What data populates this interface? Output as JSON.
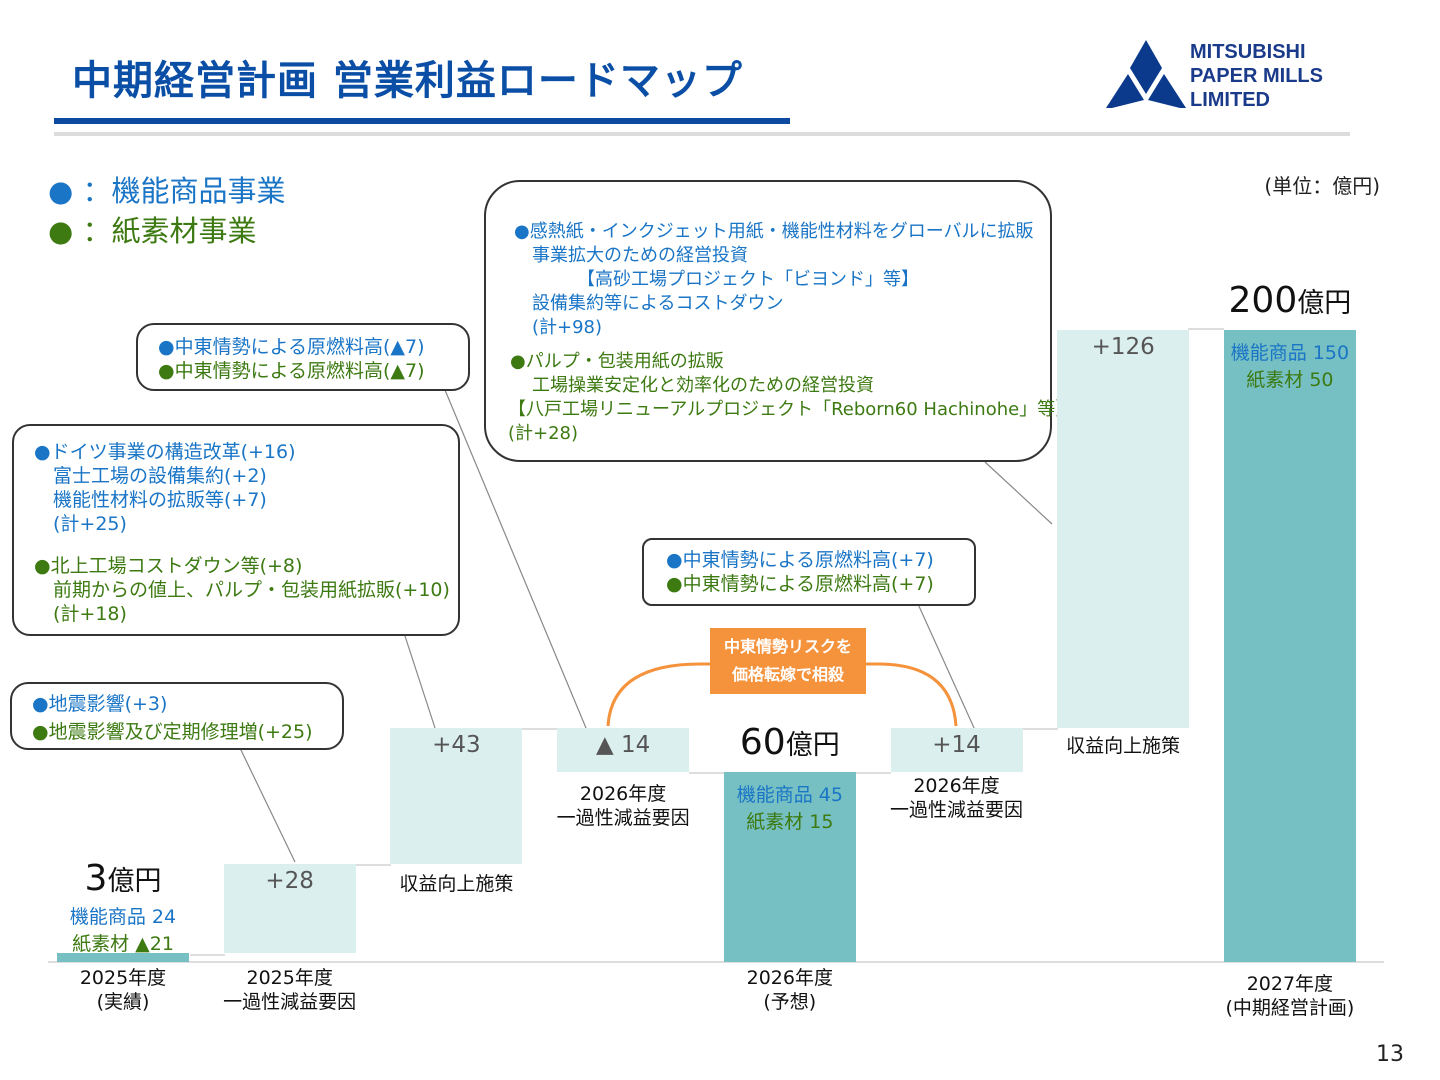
{
  "header": {
    "title": "中期経営計画 営業利益ロードマップ",
    "logo_lines": [
      "MITSUBISHI",
      "PAPER MILLS",
      "LIMITED"
    ]
  },
  "legend": {
    "items": [
      {
        "marker": "●",
        "label": "：機能商品事業",
        "color": "#1a75c6"
      },
      {
        "marker": "●",
        "label": "：紙素材事業",
        "color": "#3d7a12"
      }
    ]
  },
  "unit_label": "(単位：億円)",
  "callouts": {
    "c1": {
      "lines": [
        {
          "text": "●地震影響(+3)",
          "color": "blue"
        },
        {
          "text": "●地震影響及び定期修理増(+25)",
          "color": "green"
        }
      ]
    },
    "c2": {
      "lines": [
        {
          "text": "●ドイツ事業の構造改革(+16)",
          "color": "blue"
        },
        {
          "text": "　富士工場の設備集約(+2)",
          "color": "blue"
        },
        {
          "text": "　機能性材料の拡販等(+7)",
          "color": "blue"
        },
        {
          "text": "　(計+25)",
          "color": "blue"
        },
        {
          "text": "●北上工場コストダウン等(+8)",
          "color": "green"
        },
        {
          "text": "　前期からの値上、パルプ・包装用紙拡販(+10)",
          "color": "green"
        },
        {
          "text": "　(計+18)",
          "color": "green"
        }
      ]
    },
    "c3": {
      "lines": [
        {
          "text": "●中東情勢による原燃料高(▲7)",
          "color": "blue"
        },
        {
          "text": "●中東情勢による原燃料高(▲7)",
          "color": "green"
        }
      ]
    },
    "c4": {
      "lines": [
        {
          "text": "●感熱紙・インクジェット用紙・機能性材料をグローバルに拡販",
          "color": "blue"
        },
        {
          "text": "　事業拡大のための経営投資",
          "color": "blue"
        },
        {
          "text": "　　　　【高砂工場プロジェクト「ビヨンド」等】",
          "color": "blue"
        },
        {
          "text": "　設備集約等によるコストダウン",
          "color": "blue"
        },
        {
          "text": "　(計+98)",
          "color": "blue"
        },
        {
          "text": "●パルプ・包装用紙の拡販",
          "color": "green"
        },
        {
          "text": "　工場操業安定化と効率化のための経営投資",
          "color": "green"
        },
        {
          "text": "【八戸工場リニューアルプロジェクト「Reborn60 Hachinohe」等】",
          "color": "green"
        },
        {
          "text": "(計+28)",
          "color": "green"
        }
      ]
    },
    "c5": {
      "lines": [
        {
          "text": "●中東情勢による原燃料高(+7)",
          "color": "blue"
        },
        {
          "text": "●中東情勢による原燃料高(+7)",
          "color": "green"
        }
      ]
    }
  },
  "risk_box": {
    "line1": "中東情勢リスクを",
    "line2": "価格転嫁で相殺"
  },
  "chart_data": {
    "type": "bar",
    "subtype": "waterfall",
    "unit": "億円",
    "categories": [
      "2025年度\n(実績)",
      "2025年度\n一過性減益要因",
      "収益向上施策",
      "2026年度\n一過性減益要因",
      "2026年度\n(予想)",
      "2026年度\n一過性減益要因",
      "収益向上施策",
      "2027年度\n(中期経営計画)"
    ],
    "steps": [
      {
        "kind": "total",
        "value": 3,
        "value_label": "3",
        "unit_label": "億円",
        "breakdown": [
          {
            "label": "機能商品 24",
            "color": "blue"
          },
          {
            "label": "紙素材 ▲21",
            "color": "green"
          }
        ],
        "x_label": [
          "2025年度",
          "(実績)"
        ]
      },
      {
        "kind": "delta",
        "value": 28,
        "label": "+28",
        "x_label": [
          "2025年度",
          "一過性減益要因"
        ]
      },
      {
        "kind": "delta",
        "value": 43,
        "label": "+43",
        "x_label": [
          "収益向上施策"
        ]
      },
      {
        "kind": "delta",
        "value": -14,
        "label": "▲ 14",
        "x_label": [
          "2026年度",
          "一過性減益要因"
        ]
      },
      {
        "kind": "total",
        "value": 60,
        "value_label": "60",
        "unit_label": "億円",
        "breakdown": [
          {
            "label": "機能商品 45",
            "color": "blue"
          },
          {
            "label": "紙素材 15",
            "color": "green"
          }
        ],
        "x_label": [
          "2026年度",
          "(予想)"
        ]
      },
      {
        "kind": "delta",
        "value": 14,
        "label": "+14",
        "x_label": [
          "2026年度",
          "一過性減益要因"
        ]
      },
      {
        "kind": "delta",
        "value": 126,
        "label": "+126",
        "x_label": [
          "収益向上施策"
        ]
      },
      {
        "kind": "total",
        "value": 200,
        "value_label": "200",
        "unit_label": "億円",
        "breakdown": [
          {
            "label": "機能商品 150",
            "color": "blue"
          },
          {
            "label": "紙素材 50",
            "color": "green"
          }
        ],
        "x_label": [
          "2027年度",
          "(中期経営計画)"
        ]
      }
    ],
    "colors": {
      "total": "#76c0c3",
      "delta": "#dcefef",
      "blue_text": "#1a75c6",
      "green_text": "#3d7a12",
      "risk": "#f5923c"
    }
  },
  "page_number": "13"
}
